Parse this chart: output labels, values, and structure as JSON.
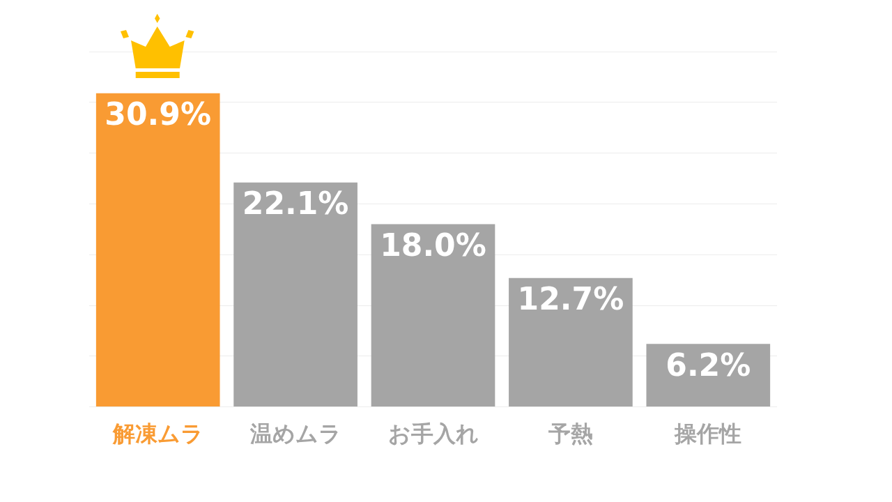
{
  "chart_data": {
    "type": "bar",
    "categories": [
      "解凍ムラ",
      "温めムラ",
      "お手入れ",
      "予熱",
      "操作性"
    ],
    "values": [
      30.9,
      22.1,
      18.0,
      12.7,
      6.2
    ],
    "colors": [
      "#f99b33",
      "#a5a5a5",
      "#a5a5a5",
      "#a5a5a5",
      "#a5a5a5"
    ],
    "value_labels": [
      "30.9%",
      "22.1%",
      "18.0%",
      "12.7%",
      "6.2%"
    ],
    "ylim": [
      0,
      35
    ],
    "yticks": [
      {
        "value": 0,
        "label": null
      },
      {
        "value": 5,
        "label": null
      },
      {
        "value": 10,
        "label": null
      },
      {
        "value": 15,
        "label": null
      },
      {
        "value": 20,
        "label": null
      },
      {
        "value": 25,
        "label": null
      },
      {
        "value": 30,
        "label": null
      },
      {
        "value": 35,
        "label": null
      }
    ],
    "tick_labels": "x",
    "grid": "y"
  }
}
